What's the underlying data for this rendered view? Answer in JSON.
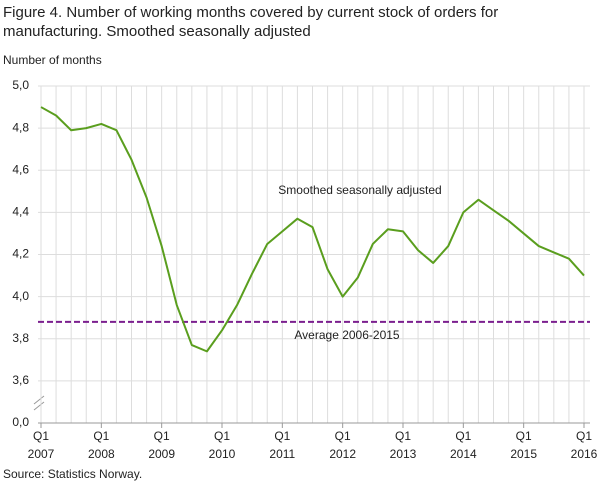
{
  "chart_data": {
    "type": "line",
    "title": "Figure 4. Number of working months covered by current stock of orders for manufacturing. Smoothed seasonally adjusted",
    "y_label": "Number of months",
    "source": "Source: Statistics Norway.",
    "categories": [
      "Q1",
      null,
      null,
      null,
      "Q1",
      null,
      null,
      null,
      "Q1",
      null,
      null,
      null,
      "Q1",
      null,
      null,
      null,
      "Q1",
      null,
      null,
      null,
      "Q1",
      null,
      null,
      null,
      "Q1",
      null,
      null,
      null,
      "Q1",
      null,
      null,
      null,
      "Q1",
      null,
      null,
      null,
      "Q1"
    ],
    "x_group_labels": [
      "2007",
      "2008",
      "2009",
      "2010",
      "2011",
      "2012",
      "2013",
      "2014",
      "2015",
      "2016"
    ],
    "series": [
      {
        "name": "Smoothed seasonally adjusted",
        "color": "#5a9e1e",
        "values": [
          4.9,
          4.86,
          4.79,
          4.8,
          4.82,
          4.79,
          4.65,
          4.47,
          4.24,
          3.96,
          3.77,
          3.74,
          3.84,
          3.96,
          4.11,
          4.25,
          4.31,
          4.37,
          4.33,
          4.13,
          4.0,
          4.09,
          4.25,
          4.32,
          4.31,
          4.22,
          4.16,
          4.24,
          4.4,
          4.46,
          4.41,
          4.36,
          4.3,
          4.24,
          4.21,
          4.18,
          4.1
        ]
      }
    ],
    "average": {
      "label": "Average 2006-2015",
      "value": 3.88,
      "color": "#7b1f8e"
    },
    "ylim": [
      0,
      5.0
    ],
    "y_break": [
      0,
      3.4
    ],
    "yticks": [
      {
        "value": 0,
        "label": "0,0"
      },
      {
        "value": 3.6,
        "label": "3,6"
      },
      {
        "value": 3.8,
        "label": "3,8"
      },
      {
        "value": 4.0,
        "label": "4,0"
      },
      {
        "value": 4.2,
        "label": "4,2"
      },
      {
        "value": 4.4,
        "label": "4,4"
      },
      {
        "value": 4.6,
        "label": "4,6"
      },
      {
        "value": 4.8,
        "label": "4,8"
      },
      {
        "value": 5.0,
        "label": "5,0"
      }
    ],
    "grid": true
  }
}
